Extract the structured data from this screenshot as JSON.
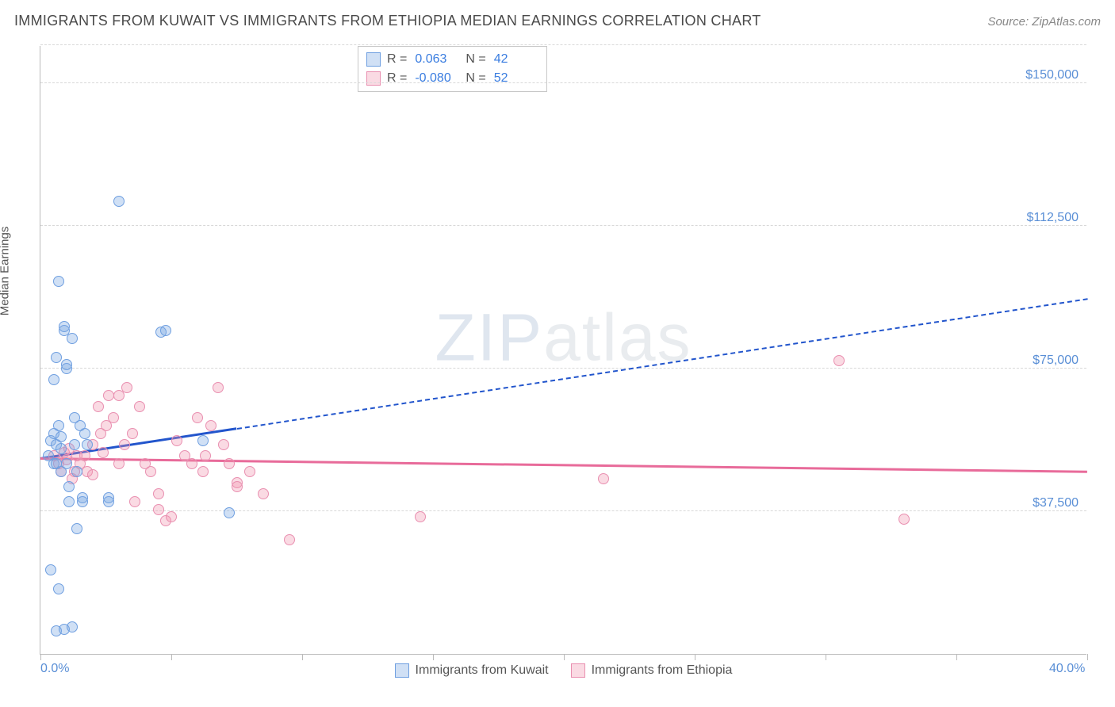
{
  "header": {
    "title": "IMMIGRANTS FROM KUWAIT VS IMMIGRANTS FROM ETHIOPIA MEDIAN EARNINGS CORRELATION CHART",
    "source": "Source: ZipAtlas.com"
  },
  "watermark": {
    "part1": "ZIP",
    "part2": "atlas"
  },
  "ylabel": "Median Earnings",
  "chart": {
    "xmin": 0.0,
    "xmax": 40.0,
    "ymin": 0,
    "ymax": 160000,
    "grid_color": "#d8d8d8",
    "axis_color": "#bbbbbb",
    "xticks_minor": [
      0,
      5,
      10,
      15,
      20,
      25,
      30,
      35,
      40
    ],
    "yticks": [
      {
        "v": 37500,
        "label": "$37,500"
      },
      {
        "v": 75000,
        "label": "$75,000"
      },
      {
        "v": 112500,
        "label": "$112,500"
      },
      {
        "v": 150000,
        "label": "$150,000"
      }
    ],
    "xtick_labels": [
      {
        "v": 0.0,
        "label": "0.0%"
      },
      {
        "v": 40.0,
        "label": "40.0%"
      }
    ],
    "marker_radius": 7,
    "marker_border_width": 1.2,
    "line_width": 3
  },
  "series": {
    "kuwait": {
      "label": "Immigrants from Kuwait",
      "fill": "rgba(120,165,225,0.35)",
      "stroke": "#6f9fe0",
      "R": "0.063",
      "N": "42",
      "trend": {
        "x1": 0.0,
        "y1": 51000,
        "x2_solid": 7.5,
        "x2": 40.0,
        "y2": 93000,
        "color": "#2255cc"
      },
      "points": [
        {
          "x": 0.3,
          "y": 52000
        },
        {
          "x": 0.4,
          "y": 56000
        },
        {
          "x": 0.5,
          "y": 50000
        },
        {
          "x": 0.5,
          "y": 72000
        },
        {
          "x": 0.6,
          "y": 78000
        },
        {
          "x": 0.6,
          "y": 55000
        },
        {
          "x": 0.7,
          "y": 60000
        },
        {
          "x": 0.7,
          "y": 98000
        },
        {
          "x": 0.8,
          "y": 54000
        },
        {
          "x": 0.8,
          "y": 48000
        },
        {
          "x": 0.9,
          "y": 85000
        },
        {
          "x": 0.9,
          "y": 86000
        },
        {
          "x": 1.0,
          "y": 75000
        },
        {
          "x": 1.0,
          "y": 76000
        },
        {
          "x": 1.1,
          "y": 44000
        },
        {
          "x": 1.1,
          "y": 40000
        },
        {
          "x": 1.2,
          "y": 83000
        },
        {
          "x": 1.3,
          "y": 55000
        },
        {
          "x": 1.4,
          "y": 33000
        },
        {
          "x": 1.5,
          "y": 60000
        },
        {
          "x": 1.6,
          "y": 40000
        },
        {
          "x": 1.6,
          "y": 41000
        },
        {
          "x": 1.7,
          "y": 58000
        },
        {
          "x": 1.8,
          "y": 55000
        },
        {
          "x": 0.4,
          "y": 22000
        },
        {
          "x": 0.7,
          "y": 17000
        },
        {
          "x": 0.6,
          "y": 6000
        },
        {
          "x": 0.9,
          "y": 6500
        },
        {
          "x": 1.2,
          "y": 7000
        },
        {
          "x": 2.6,
          "y": 40000
        },
        {
          "x": 2.6,
          "y": 41000
        },
        {
          "x": 3.0,
          "y": 119000
        },
        {
          "x": 4.6,
          "y": 84500
        },
        {
          "x": 4.8,
          "y": 85000
        },
        {
          "x": 6.2,
          "y": 56000
        },
        {
          "x": 7.2,
          "y": 37000
        },
        {
          "x": 0.5,
          "y": 58000
        },
        {
          "x": 0.6,
          "y": 50000
        },
        {
          "x": 0.8,
          "y": 57000
        },
        {
          "x": 1.0,
          "y": 50000
        },
        {
          "x": 1.3,
          "y": 62000
        },
        {
          "x": 1.4,
          "y": 48000
        }
      ]
    },
    "ethiopia": {
      "label": "Immigrants from Ethiopia",
      "fill": "rgba(240,150,175,0.35)",
      "stroke": "#e98fb0",
      "R": "-0.080",
      "N": "52",
      "trend": {
        "x1": 0.0,
        "y1": 51000,
        "x2_solid": 40.0,
        "x2": 40.0,
        "y2": 47500,
        "color": "#e86b9a"
      },
      "points": [
        {
          "x": 0.5,
          "y": 52000
        },
        {
          "x": 0.7,
          "y": 50000
        },
        {
          "x": 0.8,
          "y": 48000
        },
        {
          "x": 0.9,
          "y": 53000
        },
        {
          "x": 1.0,
          "y": 51000
        },
        {
          "x": 1.1,
          "y": 54000
        },
        {
          "x": 1.3,
          "y": 48000
        },
        {
          "x": 1.4,
          "y": 52000
        },
        {
          "x": 1.5,
          "y": 50000
        },
        {
          "x": 1.7,
          "y": 52000
        },
        {
          "x": 1.8,
          "y": 48000
        },
        {
          "x": 2.0,
          "y": 55000
        },
        {
          "x": 2.2,
          "y": 65000
        },
        {
          "x": 2.3,
          "y": 58000
        },
        {
          "x": 2.5,
          "y": 60000
        },
        {
          "x": 2.6,
          "y": 68000
        },
        {
          "x": 2.8,
          "y": 62000
        },
        {
          "x": 3.0,
          "y": 50000
        },
        {
          "x": 3.0,
          "y": 68000
        },
        {
          "x": 3.2,
          "y": 55000
        },
        {
          "x": 3.3,
          "y": 70000
        },
        {
          "x": 3.5,
          "y": 58000
        },
        {
          "x": 3.8,
          "y": 65000
        },
        {
          "x": 4.0,
          "y": 50000
        },
        {
          "x": 4.2,
          "y": 48000
        },
        {
          "x": 4.5,
          "y": 42000
        },
        {
          "x": 4.5,
          "y": 38000
        },
        {
          "x": 4.8,
          "y": 35000
        },
        {
          "x": 5.0,
          "y": 36000
        },
        {
          "x": 5.2,
          "y": 56000
        },
        {
          "x": 5.5,
          "y": 52000
        },
        {
          "x": 5.8,
          "y": 50000
        },
        {
          "x": 6.0,
          "y": 62000
        },
        {
          "x": 6.2,
          "y": 48000
        },
        {
          "x": 6.5,
          "y": 60000
        },
        {
          "x": 6.8,
          "y": 70000
        },
        {
          "x": 7.0,
          "y": 55000
        },
        {
          "x": 7.2,
          "y": 50000
        },
        {
          "x": 7.5,
          "y": 45000
        },
        {
          "x": 7.5,
          "y": 44000
        },
        {
          "x": 8.0,
          "y": 48000
        },
        {
          "x": 8.5,
          "y": 42000
        },
        {
          "x": 9.5,
          "y": 30000
        },
        {
          "x": 2.0,
          "y": 47000
        },
        {
          "x": 2.4,
          "y": 53000
        },
        {
          "x": 3.6,
          "y": 40000
        },
        {
          "x": 6.3,
          "y": 52000
        },
        {
          "x": 14.5,
          "y": 36000
        },
        {
          "x": 21.5,
          "y": 46000
        },
        {
          "x": 30.5,
          "y": 77000
        },
        {
          "x": 33.0,
          "y": 35500
        },
        {
          "x": 1.2,
          "y": 46000
        }
      ]
    }
  },
  "stats_labels": {
    "r_prefix": "R =",
    "n_prefix": "N ="
  }
}
